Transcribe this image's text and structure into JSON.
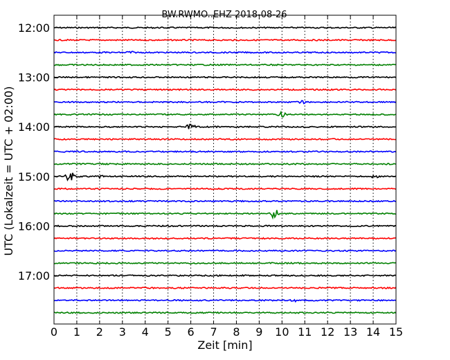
{
  "chart_data": {
    "type": "line",
    "title": "BW.RWMO..EHZ 2018-08-26",
    "xlabel": "Zeit  [min]",
    "ylabel": "UTC (Lokalzeit = UTC + 02:00)",
    "xlim": [
      0,
      15
    ],
    "x_ticks": [
      "0",
      "1",
      "2",
      "3",
      "4",
      "5",
      "6",
      "7",
      "8",
      "9",
      "10",
      "11",
      "12",
      "13",
      "14",
      "15"
    ],
    "y_ticks": [
      "12:00",
      "13:00",
      "14:00",
      "15:00",
      "16:00",
      "17:00"
    ],
    "grid": "vertical dotted",
    "trace_colors": [
      "#000000",
      "#ff0000",
      "#0000ff",
      "#008000"
    ],
    "series": [
      {
        "start": "12:00",
        "color": "#000000"
      },
      {
        "start": "12:15",
        "color": "#ff0000"
      },
      {
        "start": "12:30",
        "color": "#0000ff",
        "events": [
          {
            "minute": 3.3,
            "amplitude": 2
          }
        ]
      },
      {
        "start": "12:45",
        "color": "#008000"
      },
      {
        "start": "13:00",
        "color": "#000000"
      },
      {
        "start": "13:15",
        "color": "#ff0000"
      },
      {
        "start": "13:30",
        "color": "#0000ff",
        "events": [
          {
            "minute": 10.9,
            "amplitude": 2
          }
        ]
      },
      {
        "start": "13:45",
        "color": "#008000",
        "events": [
          {
            "minute": 10.0,
            "amplitude": 5
          }
        ]
      },
      {
        "start": "14:00",
        "color": "#000000",
        "events": [
          {
            "minute": 6.0,
            "amplitude": 6
          }
        ]
      },
      {
        "start": "14:15",
        "color": "#ff0000"
      },
      {
        "start": "14:30",
        "color": "#0000ff"
      },
      {
        "start": "14:45",
        "color": "#008000"
      },
      {
        "start": "15:00",
        "color": "#000000",
        "events": [
          {
            "minute": 0.7,
            "amplitude": 8
          },
          {
            "minute": 2.0,
            "amplitude": 2
          },
          {
            "minute": 14.1,
            "amplitude": 2
          }
        ]
      },
      {
        "start": "15:15",
        "color": "#ff0000"
      },
      {
        "start": "15:30",
        "color": "#0000ff"
      },
      {
        "start": "15:45",
        "color": "#008000",
        "events": [
          {
            "minute": 9.7,
            "amplitude": 12
          }
        ]
      },
      {
        "start": "16:00",
        "color": "#000000"
      },
      {
        "start": "16:15",
        "color": "#ff0000"
      },
      {
        "start": "16:30",
        "color": "#0000ff"
      },
      {
        "start": "16:45",
        "color": "#008000"
      },
      {
        "start": "17:00",
        "color": "#000000"
      },
      {
        "start": "17:15",
        "color": "#ff0000"
      },
      {
        "start": "17:30",
        "color": "#0000ff",
        "events": [
          {
            "minute": 10.5,
            "amplitude": 2
          }
        ]
      },
      {
        "start": "17:45",
        "color": "#008000"
      }
    ]
  }
}
